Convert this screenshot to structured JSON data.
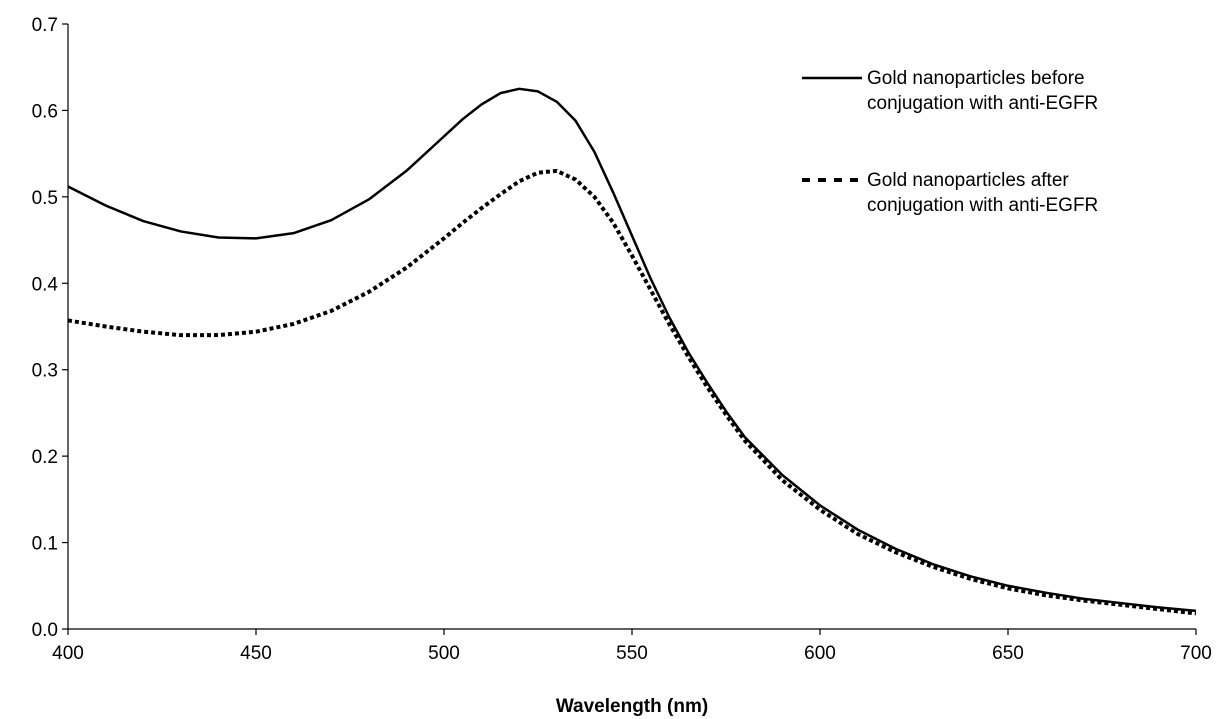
{
  "chart_data": {
    "type": "line",
    "title": "",
    "xlabel": "Wavelength (nm)",
    "ylabel": "",
    "xlim": [
      400,
      700
    ],
    "ylim": [
      0,
      0.7
    ],
    "x_ticks": [
      400,
      450,
      500,
      550,
      600,
      650,
      700
    ],
    "x_tick_labels": [
      "400",
      "450",
      "500",
      "550",
      "600",
      "650",
      "700"
    ],
    "y_ticks": [
      0,
      0.1,
      0.2,
      0.3,
      0.4,
      0.5,
      0.6,
      0.7
    ],
    "y_tick_labels": [
      "0.0",
      "0.1",
      "0.2",
      "0.3",
      "0.4",
      "0.5",
      "0.6",
      "0.7"
    ],
    "grid": false,
    "legend_position": "top-right",
    "series": [
      {
        "name_lines": [
          "Gold nanoparticles before",
          "conjugation with anti-EGFR"
        ],
        "style": "solid",
        "color": "#000000",
        "x": [
          400,
          410,
          420,
          430,
          440,
          450,
          460,
          470,
          480,
          490,
          500,
          505,
          510,
          515,
          520,
          525,
          530,
          535,
          540,
          545,
          550,
          555,
          560,
          565,
          570,
          575,
          580,
          590,
          600,
          610,
          620,
          630,
          640,
          650,
          660,
          670,
          680,
          690,
          700
        ],
        "y": [
          0.512,
          0.49,
          0.472,
          0.46,
          0.453,
          0.452,
          0.458,
          0.473,
          0.497,
          0.53,
          0.57,
          0.59,
          0.607,
          0.62,
          0.625,
          0.622,
          0.61,
          0.588,
          0.552,
          0.505,
          0.455,
          0.405,
          0.36,
          0.32,
          0.285,
          0.252,
          0.222,
          0.178,
          0.143,
          0.115,
          0.093,
          0.075,
          0.061,
          0.05,
          0.042,
          0.035,
          0.03,
          0.025,
          0.021
        ]
      },
      {
        "name_lines": [
          "Gold nanoparticles after",
          "conjugation with anti-EGFR"
        ],
        "style": "dotted",
        "color": "#000000",
        "x": [
          400,
          410,
          420,
          430,
          440,
          450,
          460,
          470,
          480,
          490,
          500,
          505,
          510,
          515,
          520,
          525,
          530,
          535,
          540,
          545,
          550,
          555,
          560,
          565,
          570,
          575,
          580,
          590,
          600,
          610,
          620,
          630,
          640,
          650,
          660,
          670,
          680,
          690,
          700
        ],
        "y": [
          0.357,
          0.35,
          0.344,
          0.34,
          0.34,
          0.344,
          0.353,
          0.368,
          0.39,
          0.418,
          0.452,
          0.47,
          0.487,
          0.503,
          0.518,
          0.528,
          0.53,
          0.52,
          0.5,
          0.47,
          0.432,
          0.392,
          0.352,
          0.315,
          0.28,
          0.248,
          0.218,
          0.172,
          0.138,
          0.11,
          0.089,
          0.072,
          0.058,
          0.047,
          0.039,
          0.033,
          0.028,
          0.023,
          0.018
        ]
      }
    ]
  }
}
